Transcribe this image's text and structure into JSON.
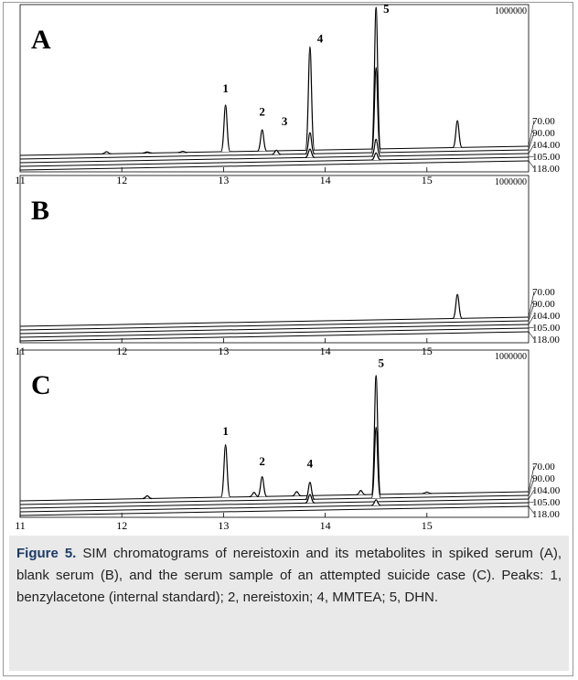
{
  "chart_data": [
    {
      "type": "line",
      "title": "A",
      "xlim": [
        11,
        16
      ],
      "xticks": [
        11,
        12,
        13,
        14,
        15
      ],
      "ylim": [
        0,
        1000000
      ],
      "series": [
        {
          "name": "70.00",
          "color": "#000000",
          "x": [
            11.85,
            12.25,
            12.6,
            13.02,
            13.38,
            13.85,
            14.5,
            15.3
          ],
          "values": [
            15000,
            8000,
            8000,
            330000,
            150000,
            730000,
            1000000,
            190000
          ]
        },
        {
          "name": "90.00",
          "color": "#000000",
          "x": [
            13.52,
            13.85,
            14.5
          ],
          "values": [
            30000,
            150000,
            600000
          ]
        },
        {
          "name": "104.00",
          "color": "#000000",
          "x": [
            13.85,
            14.5
          ],
          "values": [
            60000,
            120000
          ]
        },
        {
          "name": "105.00",
          "color": "#000000",
          "x": [
            14.5
          ],
          "values": [
            50000
          ]
        },
        {
          "name": "118.00",
          "color": "#000000",
          "x": [],
          "values": []
        }
      ],
      "annotations": [
        {
          "text": "1",
          "x": 13.02,
          "y": 420000
        },
        {
          "text": "2",
          "x": 13.38,
          "y": 250000
        },
        {
          "text": "3",
          "x": 13.6,
          "y": 180000
        },
        {
          "text": "4",
          "x": 13.95,
          "y": 760000
        },
        {
          "text": "5",
          "x": 14.6,
          "y": 960000
        }
      ]
    },
    {
      "type": "line",
      "title": "B",
      "xlim": [
        11,
        16
      ],
      "xticks": [
        11,
        12,
        13,
        14,
        15
      ],
      "ylim": [
        0,
        1000000
      ],
      "series": [
        {
          "name": "70.00",
          "color": "#000000",
          "x": [
            15.3
          ],
          "values": [
            170000
          ]
        },
        {
          "name": "90.00",
          "color": "#000000",
          "x": [],
          "values": []
        },
        {
          "name": "104.00",
          "color": "#000000",
          "x": [],
          "values": []
        },
        {
          "name": "105.00",
          "color": "#000000",
          "x": [],
          "values": []
        },
        {
          "name": "118.00",
          "color": "#000000",
          "x": [],
          "values": []
        }
      ],
      "annotations": []
    },
    {
      "type": "line",
      "title": "C",
      "xlim": [
        11,
        16
      ],
      "xticks": [
        11,
        12,
        13,
        14,
        15
      ],
      "ylim": [
        0,
        1000000
      ],
      "series": [
        {
          "name": "70.00",
          "color": "#000000",
          "x": [
            12.25,
            13.02,
            13.3,
            13.38,
            13.72,
            14.35,
            14.5,
            15.0
          ],
          "values": [
            20000,
            370000,
            30000,
            140000,
            30000,
            30000,
            840000,
            10000
          ]
        },
        {
          "name": "90.00",
          "color": "#000000",
          "x": [
            13.85,
            14.5
          ],
          "values": [
            120000,
            500000
          ]
        },
        {
          "name": "104.00",
          "color": "#000000",
          "x": [
            13.85
          ],
          "values": [
            60000
          ]
        },
        {
          "name": "105.00",
          "color": "#000000",
          "x": [
            14.5
          ],
          "values": [
            40000
          ]
        },
        {
          "name": "118.00",
          "color": "#000000",
          "x": [],
          "values": []
        }
      ],
      "annotations": [
        {
          "text": "1",
          "x": 13.02,
          "y": 440000
        },
        {
          "text": "2",
          "x": 13.38,
          "y": 220000
        },
        {
          "text": "4",
          "x": 13.85,
          "y": 200000
        },
        {
          "text": "5",
          "x": 14.55,
          "y": 900000
        }
      ]
    }
  ],
  "caption": {
    "label": "Figure 5.",
    "text": "SIM chromatograms of nereistoxin and its metabolites in spiked serum (A), blank serum (B), and the serum sample of an attempted suicide case (C). Peaks: 1, benzylacetone (internal standard); 2, nereistoxin; 4, MMTEA; 5, DHN."
  }
}
